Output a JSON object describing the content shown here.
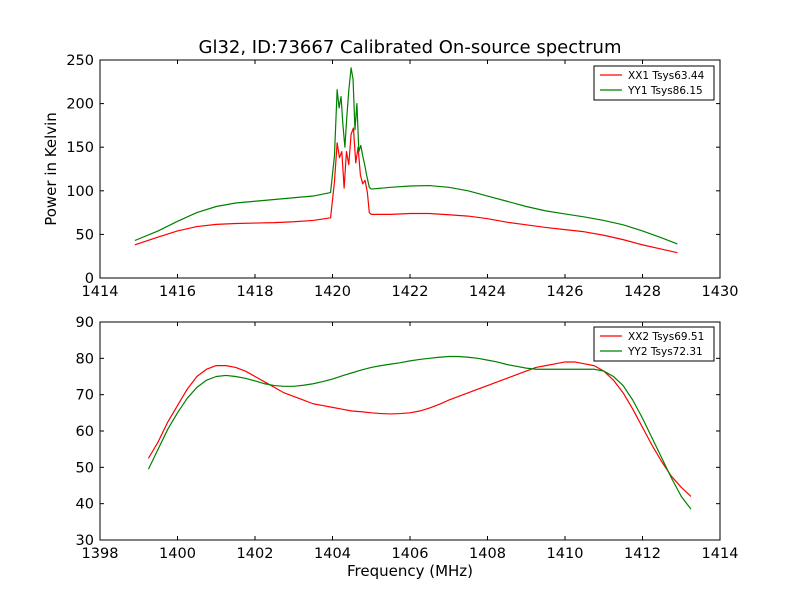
{
  "chart_data": {
    "title": "Gl32, ID:73667 Calibrated On-source spectrum",
    "panels": [
      {
        "type": "line",
        "xlim": [
          1414,
          1430
        ],
        "ylim": [
          0,
          250
        ],
        "xticks": [
          1414,
          1416,
          1418,
          1420,
          1422,
          1424,
          1426,
          1428,
          1430
        ],
        "yticks": [
          0,
          50,
          100,
          150,
          200,
          250
        ],
        "xlabel": "",
        "ylabel": "Power in Kelvin",
        "grid": false,
        "legend_position": "top-right",
        "series": [
          {
            "name": "XX1 Tsys63.44",
            "color": "#ff0000",
            "x": [
              1414.9,
              1415.5,
              1416.0,
              1416.5,
              1417.0,
              1417.5,
              1418.0,
              1418.5,
              1419.0,
              1419.5,
              1419.95,
              1420.05,
              1420.12,
              1420.18,
              1420.24,
              1420.3,
              1420.36,
              1420.42,
              1420.48,
              1420.54,
              1420.6,
              1420.66,
              1420.72,
              1420.78,
              1420.84,
              1420.9,
              1420.95,
              1421.0,
              1421.5,
              1422.0,
              1422.5,
              1423.0,
              1423.5,
              1424.0,
              1424.5,
              1425.0,
              1425.5,
              1426.0,
              1426.5,
              1427.0,
              1427.5,
              1428.0,
              1428.5,
              1428.9
            ],
            "y": [
              38,
              47,
              54,
              59,
              61.5,
              62.5,
              63,
              63.5,
              64.5,
              66,
              69,
              110,
              155,
              138,
              145,
              103,
              145,
              130,
              165,
              172,
              132,
              150,
              118,
              108,
              112,
              98,
              75,
              73,
              73,
              74,
              74,
              72.5,
              71,
              68,
              64,
              61,
              58,
              55.5,
              53,
              49,
              44,
              38,
              33,
              29
            ]
          },
          {
            "name": "YY1 Tsys86.15",
            "color": "#008000",
            "x": [
              1414.9,
              1415.5,
              1416.0,
              1416.5,
              1417.0,
              1417.5,
              1418.0,
              1418.5,
              1419.0,
              1419.5,
              1419.95,
              1420.05,
              1420.12,
              1420.17,
              1420.22,
              1420.27,
              1420.32,
              1420.37,
              1420.42,
              1420.48,
              1420.53,
              1420.58,
              1420.63,
              1420.68,
              1420.73,
              1420.78,
              1420.83,
              1420.88,
              1420.95,
              1421.0,
              1421.5,
              1422.0,
              1422.5,
              1423.0,
              1423.5,
              1424.0,
              1424.5,
              1425.0,
              1425.5,
              1426.0,
              1426.5,
              1427.0,
              1427.5,
              1428.0,
              1428.5,
              1428.9
            ],
            "y": [
              43,
              54,
              65,
              75,
              82,
              86,
              88,
              90,
              92,
              94,
              98,
              140,
              216,
              195,
              208,
              175,
              150,
              185,
              215,
              241,
              228,
              170,
              200,
              145,
              152,
              140,
              130,
              118,
              104,
              102,
              104,
              105.5,
              106,
              104,
              100,
              94,
              88,
              82,
              77,
              73.5,
              70,
              66,
              61,
              54,
              46,
              39
            ]
          }
        ]
      },
      {
        "type": "line",
        "xlim": [
          1398,
          1414
        ],
        "ylim": [
          30,
          90
        ],
        "xticks": [
          1398,
          1400,
          1402,
          1404,
          1406,
          1408,
          1410,
          1412,
          1414
        ],
        "yticks": [
          30,
          40,
          50,
          60,
          70,
          80,
          90
        ],
        "xlabel": "Frequency (MHz)",
        "ylabel": "",
        "grid": false,
        "legend_position": "top-right",
        "series": [
          {
            "name": "XX2 Tsys69.51",
            "color": "#ff0000",
            "x": [
              1399.25,
              1399.5,
              1399.75,
              1400.0,
              1400.25,
              1400.5,
              1400.75,
              1401.0,
              1401.25,
              1401.5,
              1401.75,
              1402.0,
              1402.25,
              1402.5,
              1402.75,
              1403.0,
              1403.25,
              1403.5,
              1403.75,
              1404.0,
              1404.25,
              1404.5,
              1404.75,
              1405.0,
              1405.25,
              1405.5,
              1405.75,
              1406.0,
              1406.25,
              1406.5,
              1406.75,
              1407.0,
              1407.25,
              1407.5,
              1407.75,
              1408.0,
              1408.25,
              1408.5,
              1408.75,
              1409.0,
              1409.25,
              1409.5,
              1409.75,
              1410.0,
              1410.25,
              1410.5,
              1410.75,
              1411.0,
              1411.25,
              1411.5,
              1411.75,
              1412.0,
              1412.25,
              1412.5,
              1412.75,
              1413.0,
              1413.25
            ],
            "y": [
              52.5,
              57,
              62.5,
              67,
              71.5,
              75,
              77,
              78,
              78,
              77.5,
              76.5,
              75,
              73.5,
              72,
              70.5,
              69.5,
              68.5,
              67.5,
              67,
              66.5,
              66,
              65.5,
              65.3,
              65,
              64.8,
              64.7,
              64.8,
              65,
              65.5,
              66.3,
              67.3,
              68.5,
              69.5,
              70.5,
              71.5,
              72.5,
              73.5,
              74.5,
              75.5,
              76.5,
              77.5,
              78,
              78.5,
              79,
              79,
              78.5,
              78,
              76.5,
              74,
              70.5,
              66,
              61,
              56,
              51.5,
              47.5,
              44.5,
              42
            ]
          },
          {
            "name": "YY2 Tsys72.31",
            "color": "#008000",
            "x": [
              1399.25,
              1399.5,
              1399.75,
              1400.0,
              1400.25,
              1400.5,
              1400.75,
              1401.0,
              1401.25,
              1401.5,
              1401.75,
              1402.0,
              1402.25,
              1402.5,
              1402.75,
              1403.0,
              1403.25,
              1403.5,
              1403.75,
              1404.0,
              1404.25,
              1404.5,
              1404.75,
              1405.0,
              1405.25,
              1405.5,
              1405.75,
              1406.0,
              1406.25,
              1406.5,
              1406.75,
              1407.0,
              1407.25,
              1407.5,
              1407.75,
              1408.0,
              1408.25,
              1408.5,
              1408.75,
              1409.0,
              1409.25,
              1409.5,
              1409.75,
              1410.0,
              1410.25,
              1410.5,
              1410.75,
              1411.0,
              1411.25,
              1411.5,
              1411.75,
              1412.0,
              1412.25,
              1412.5,
              1412.75,
              1413.0,
              1413.25
            ],
            "y": [
              49.5,
              55,
              60.5,
              65,
              69,
              72,
              74,
              75,
              75.3,
              75,
              74.5,
              73.8,
              73,
              72.5,
              72.3,
              72.3,
              72.6,
              73,
              73.6,
              74.3,
              75.2,
              76,
              76.8,
              77.5,
              78,
              78.4,
              78.8,
              79.3,
              79.7,
              80,
              80.3,
              80.5,
              80.5,
              80.3,
              80,
              79.5,
              79,
              78.3,
              77.8,
              77.3,
              77,
              77,
              77,
              77,
              77,
              77,
              77,
              76.5,
              75,
              72.5,
              68.5,
              63.5,
              58,
              52.5,
              47,
              42,
              38.5
            ]
          }
        ]
      }
    ]
  }
}
